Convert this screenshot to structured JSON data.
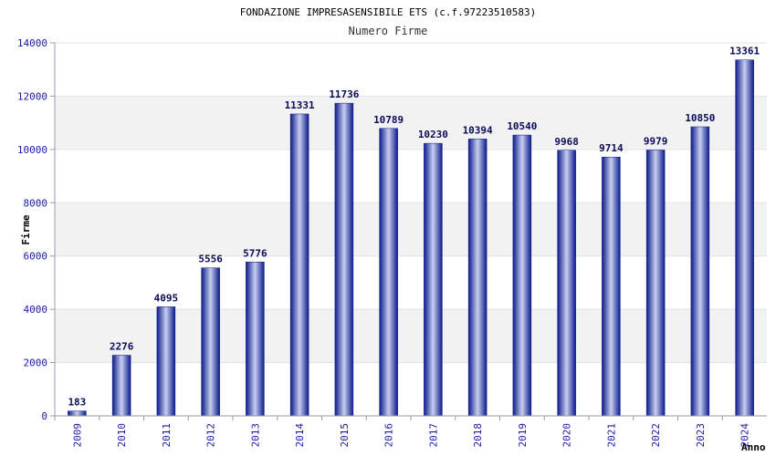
{
  "chart_data": {
    "type": "bar",
    "title": "FONDAZIONE IMPRESASENSIBILE ETS (c.f.97223510583)",
    "subtitle": "Numero Firme",
    "xlabel": "Anno",
    "ylabel": "Firme",
    "categories": [
      "2009",
      "2010",
      "2011",
      "2012",
      "2013",
      "2014",
      "2015",
      "2016",
      "2017",
      "2018",
      "2019",
      "2020",
      "2021",
      "2022",
      "2023",
      "2024"
    ],
    "values": [
      183,
      2276,
      4095,
      5556,
      5776,
      11331,
      11736,
      10789,
      10230,
      10394,
      10540,
      9968,
      9714,
      9979,
      10850,
      13361
    ],
    "data_labels": [
      "183",
      "2276",
      "4095",
      "5556",
      "5776",
      "11331",
      "11736",
      "10789",
      "10230",
      "10394",
      "10540",
      "9968",
      "9714",
      "9979",
      "10850",
      "13361"
    ],
    "yticks": [
      0,
      2000,
      4000,
      6000,
      8000,
      10000,
      12000,
      14000
    ],
    "ylim": [
      0,
      14000
    ],
    "grid": true,
    "legend": "none",
    "colors": {
      "bar_dark": "#0b1a8a",
      "bar_light": "#c8cff0",
      "band": "#f2f2f2",
      "axis": "#9999aa",
      "tick_text": "#1a1aa6"
    }
  }
}
